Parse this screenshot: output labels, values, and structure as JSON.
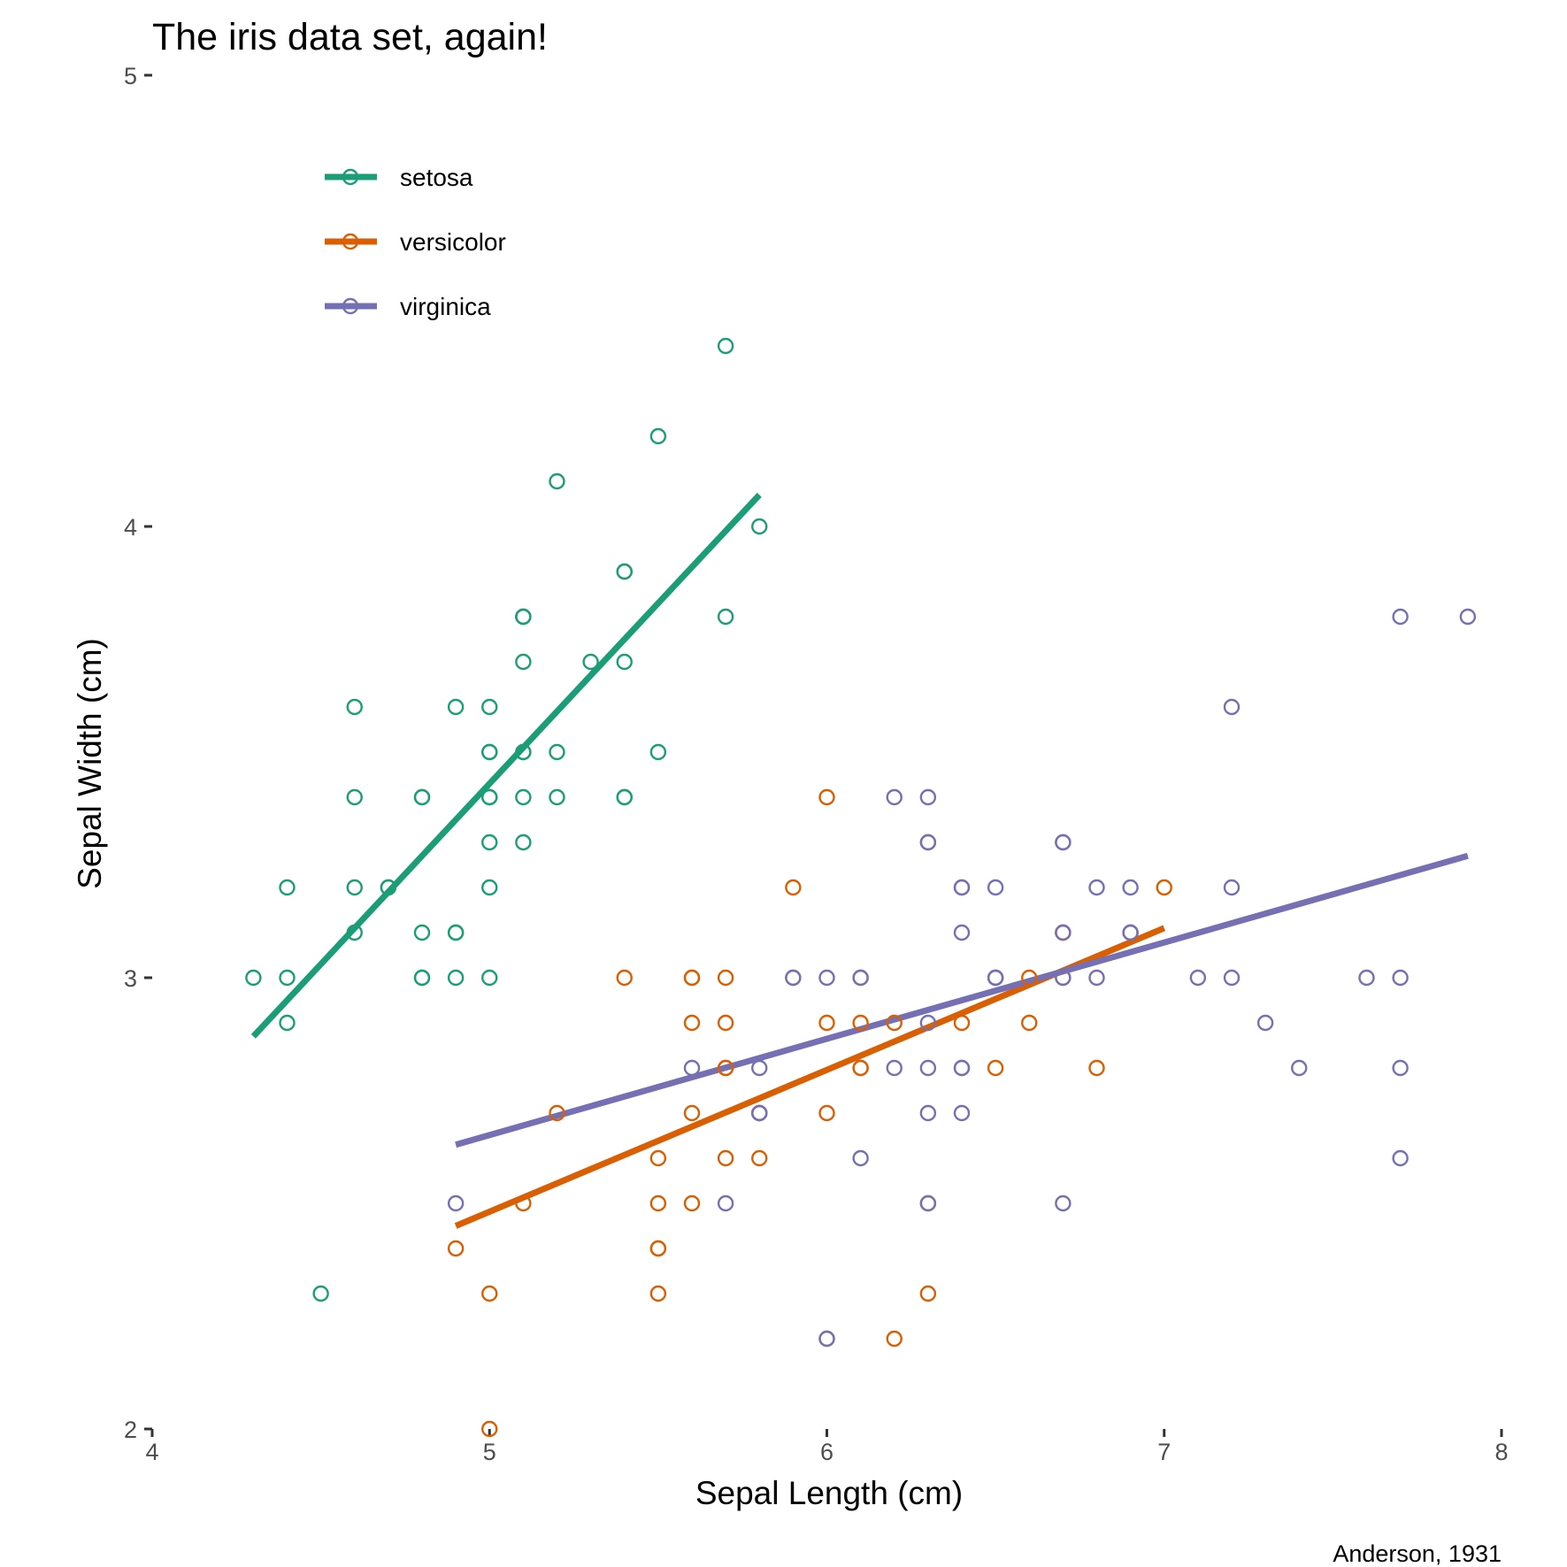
{
  "chart_data": {
    "type": "scatter",
    "title": "The iris data set, again!",
    "xlabel": "Sepal Length (cm)",
    "ylabel": "Sepal Width (cm)",
    "caption": "Anderson, 1931",
    "xlim": [
      4,
      8
    ],
    "ylim": [
      2,
      5
    ],
    "xticks": [
      "4",
      "5",
      "6",
      "7",
      "8"
    ],
    "yticks": [
      "2",
      "3",
      "4",
      "5"
    ],
    "grid": false,
    "legend_position": "top-left inside",
    "series": [
      {
        "name": "setosa",
        "color": "#1b9e77",
        "trend": {
          "x": [
            4.3,
            5.8
          ],
          "y": [
            2.87,
            4.07
          ]
        },
        "points": [
          [
            5.1,
            3.5
          ],
          [
            4.9,
            3.0
          ],
          [
            4.7,
            3.2
          ],
          [
            4.6,
            3.1
          ],
          [
            5.0,
            3.6
          ],
          [
            5.4,
            3.9
          ],
          [
            4.6,
            3.4
          ],
          [
            5.0,
            3.4
          ],
          [
            4.4,
            2.9
          ],
          [
            4.9,
            3.1
          ],
          [
            5.4,
            3.7
          ],
          [
            4.8,
            3.4
          ],
          [
            4.8,
            3.0
          ],
          [
            4.3,
            3.0
          ],
          [
            5.8,
            4.0
          ],
          [
            5.7,
            4.4
          ],
          [
            5.4,
            3.9
          ],
          [
            5.1,
            3.5
          ],
          [
            5.7,
            3.8
          ],
          [
            5.1,
            3.8
          ],
          [
            5.4,
            3.4
          ],
          [
            5.1,
            3.7
          ],
          [
            4.6,
            3.6
          ],
          [
            5.1,
            3.3
          ],
          [
            4.8,
            3.4
          ],
          [
            5.0,
            3.0
          ],
          [
            5.0,
            3.4
          ],
          [
            5.2,
            3.5
          ],
          [
            5.2,
            3.4
          ],
          [
            4.7,
            3.2
          ],
          [
            4.8,
            3.1
          ],
          [
            5.4,
            3.4
          ],
          [
            5.2,
            4.1
          ],
          [
            5.5,
            4.2
          ],
          [
            4.9,
            3.1
          ],
          [
            5.0,
            3.2
          ],
          [
            5.5,
            3.5
          ],
          [
            4.9,
            3.6
          ],
          [
            4.4,
            3.0
          ],
          [
            5.1,
            3.4
          ],
          [
            5.0,
            3.5
          ],
          [
            4.5,
            2.3
          ],
          [
            4.4,
            3.2
          ],
          [
            5.0,
            3.5
          ],
          [
            5.1,
            3.8
          ],
          [
            4.8,
            3.0
          ],
          [
            5.1,
            3.8
          ],
          [
            4.6,
            3.2
          ],
          [
            5.3,
            3.7
          ],
          [
            5.0,
            3.3
          ]
        ]
      },
      {
        "name": "versicolor",
        "color": "#d95f02",
        "trend": {
          "x": [
            4.9,
            7.0
          ],
          "y": [
            2.45,
            3.11
          ]
        },
        "points": [
          [
            7.0,
            3.2
          ],
          [
            6.4,
            3.2
          ],
          [
            6.9,
            3.1
          ],
          [
            5.5,
            2.3
          ],
          [
            6.5,
            2.8
          ],
          [
            5.7,
            2.8
          ],
          [
            6.3,
            3.3
          ],
          [
            4.9,
            2.4
          ],
          [
            6.6,
            2.9
          ],
          [
            5.2,
            2.7
          ],
          [
            5.0,
            2.0
          ],
          [
            5.9,
            3.0
          ],
          [
            6.0,
            2.2
          ],
          [
            6.1,
            2.9
          ],
          [
            5.6,
            2.9
          ],
          [
            6.7,
            3.1
          ],
          [
            5.6,
            3.0
          ],
          [
            5.8,
            2.7
          ],
          [
            6.2,
            2.2
          ],
          [
            5.6,
            2.5
          ],
          [
            5.9,
            3.2
          ],
          [
            6.1,
            2.8
          ],
          [
            6.3,
            2.5
          ],
          [
            6.1,
            2.8
          ],
          [
            6.4,
            2.9
          ],
          [
            6.6,
            3.0
          ],
          [
            6.8,
            2.8
          ],
          [
            6.7,
            3.0
          ],
          [
            6.0,
            2.9
          ],
          [
            5.7,
            2.6
          ],
          [
            5.5,
            2.4
          ],
          [
            5.5,
            2.4
          ],
          [
            5.8,
            2.7
          ],
          [
            6.0,
            2.7
          ],
          [
            5.4,
            3.0
          ],
          [
            6.0,
            3.4
          ],
          [
            6.7,
            3.1
          ],
          [
            6.3,
            2.3
          ],
          [
            5.6,
            3.0
          ],
          [
            5.5,
            2.5
          ],
          [
            5.5,
            2.6
          ],
          [
            6.1,
            3.0
          ],
          [
            5.8,
            2.6
          ],
          [
            5.0,
            2.3
          ],
          [
            5.6,
            2.7
          ],
          [
            5.7,
            3.0
          ],
          [
            5.7,
            2.9
          ],
          [
            6.2,
            2.9
          ],
          [
            5.1,
            2.5
          ],
          [
            5.7,
            2.8
          ]
        ]
      },
      {
        "name": "virginica",
        "color": "#7570b3",
        "trend": {
          "x": [
            4.9,
            7.9
          ],
          "y": [
            2.63,
            3.27
          ]
        },
        "points": [
          [
            6.3,
            3.3
          ],
          [
            5.8,
            2.7
          ],
          [
            7.1,
            3.0
          ],
          [
            6.3,
            2.9
          ],
          [
            6.5,
            3.0
          ],
          [
            7.6,
            3.0
          ],
          [
            4.9,
            2.5
          ],
          [
            7.3,
            2.9
          ],
          [
            6.7,
            2.5
          ],
          [
            7.2,
            3.6
          ],
          [
            6.5,
            3.2
          ],
          [
            6.4,
            2.7
          ],
          [
            6.8,
            3.0
          ],
          [
            5.7,
            2.5
          ],
          [
            5.8,
            2.8
          ],
          [
            6.4,
            3.2
          ],
          [
            6.5,
            3.0
          ],
          [
            7.7,
            3.8
          ],
          [
            7.7,
            2.6
          ],
          [
            6.0,
            2.2
          ],
          [
            6.9,
            3.2
          ],
          [
            5.6,
            2.8
          ],
          [
            7.7,
            2.8
          ],
          [
            6.3,
            2.7
          ],
          [
            6.7,
            3.3
          ],
          [
            7.2,
            3.2
          ],
          [
            6.2,
            2.8
          ],
          [
            6.1,
            3.0
          ],
          [
            6.4,
            2.8
          ],
          [
            7.2,
            3.0
          ],
          [
            7.4,
            2.8
          ],
          [
            7.9,
            3.8
          ],
          [
            6.4,
            2.8
          ],
          [
            6.3,
            2.8
          ],
          [
            6.1,
            2.6
          ],
          [
            7.7,
            3.0
          ],
          [
            6.3,
            3.4
          ],
          [
            6.4,
            3.1
          ],
          [
            6.0,
            3.0
          ],
          [
            6.9,
            3.1
          ],
          [
            6.7,
            3.1
          ],
          [
            6.9,
            3.1
          ],
          [
            5.8,
            2.7
          ],
          [
            6.8,
            3.2
          ],
          [
            6.7,
            3.3
          ],
          [
            6.7,
            3.0
          ],
          [
            6.3,
            2.5
          ],
          [
            6.5,
            3.0
          ],
          [
            6.2,
            3.4
          ],
          [
            5.9,
            3.0
          ]
        ]
      }
    ]
  }
}
